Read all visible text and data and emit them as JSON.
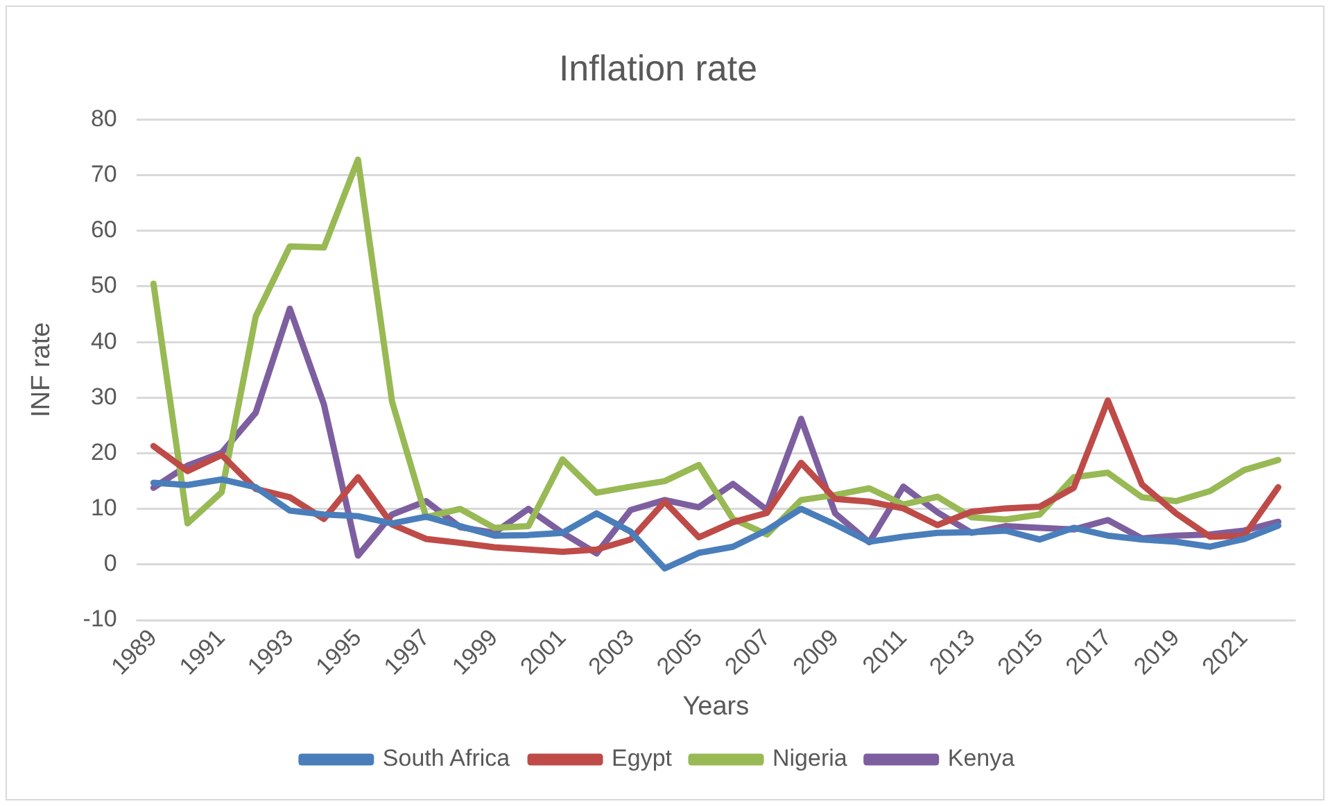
{
  "chart_data": {
    "type": "line",
    "title": "Inflation rate",
    "xlabel": "Years",
    "ylabel": "INF rate",
    "categories": [
      "1989",
      null,
      "1991",
      null,
      "1993",
      null,
      "1995",
      null,
      "1997",
      null,
      "1999",
      null,
      "2001",
      null,
      "2003",
      null,
      "2005",
      null,
      "2007",
      null,
      "2009",
      null,
      "2011",
      null,
      "2013",
      null,
      "2015",
      null,
      "2017",
      null,
      "2019",
      null,
      "2021",
      null
    ],
    "series": [
      {
        "name": "South Africa",
        "color": "#4a7ebb",
        "values": [
          14.7,
          14.3,
          15.3,
          13.9,
          9.7,
          9.0,
          8.7,
          7.4,
          8.6,
          6.9,
          5.2,
          5.3,
          5.7,
          9.2,
          5.9,
          -0.7,
          2.1,
          3.2,
          6.2,
          10.0,
          7.2,
          4.1,
          5.0,
          5.7,
          5.8,
          6.1,
          4.5,
          6.6,
          5.2,
          4.5,
          4.1,
          3.2,
          4.6,
          7.0
        ]
      },
      {
        "name": "Egypt",
        "color": "#be4b48",
        "values": [
          21.3,
          16.8,
          19.7,
          13.6,
          12.1,
          8.2,
          15.7,
          7.2,
          4.6,
          3.9,
          3.1,
          2.7,
          2.3,
          2.7,
          4.5,
          11.3,
          4.9,
          7.6,
          9.3,
          18.3,
          11.8,
          11.3,
          10.1,
          7.1,
          9.5,
          10.1,
          10.4,
          13.8,
          29.5,
          14.4,
          9.2,
          5.0,
          5.2,
          13.9
        ]
      },
      {
        "name": "Nigeria",
        "color": "#98b954",
        "values": [
          50.5,
          7.4,
          13.0,
          44.6,
          57.2,
          57.0,
          72.8,
          29.3,
          8.5,
          10.0,
          6.6,
          6.9,
          18.9,
          12.9,
          14.0,
          15.0,
          17.9,
          8.2,
          5.4,
          11.6,
          12.5,
          13.7,
          10.8,
          12.2,
          8.5,
          8.1,
          9.0,
          15.7,
          16.5,
          12.1,
          11.4,
          13.2,
          17.0,
          18.8
        ]
      },
      {
        "name": "Kenya",
        "color": "#7d5fa0",
        "values": [
          13.8,
          17.8,
          20.1,
          27.3,
          46.0,
          28.8,
          1.6,
          9.0,
          11.4,
          6.7,
          5.7,
          10.0,
          5.7,
          2.0,
          9.8,
          11.6,
          10.3,
          14.5,
          9.8,
          26.2,
          9.2,
          4.0,
          14.0,
          9.4,
          5.7,
          6.9,
          6.6,
          6.3,
          8.0,
          4.7,
          5.2,
          5.4,
          6.1,
          7.7
        ]
      }
    ],
    "ylim": [
      -10,
      80
    ],
    "yticks": [
      -10,
      0,
      10,
      20,
      30,
      40,
      50,
      60,
      70,
      80
    ],
    "grid": "y",
    "legend": "bottom",
    "marker": "none",
    "line_style": "solid"
  }
}
